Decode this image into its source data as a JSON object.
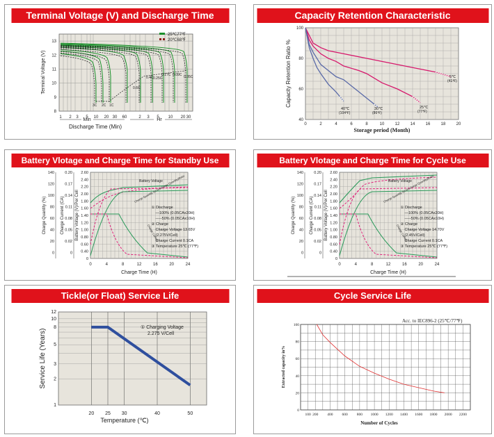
{
  "panels": [
    {
      "id": "p1",
      "title": "Terminal Voltage (V) and Discharge Time",
      "chart_data": {
        "type": "line",
        "ylabel": "Terminal Voltage (V)",
        "xlabel": "Discharge Time (Min)",
        "y_ticks": [
          "13",
          "12",
          "11",
          "10",
          "9",
          "8"
        ],
        "x_ticks_min": [
          "1",
          "2",
          "3",
          "5",
          "10",
          "20",
          "30",
          "60"
        ],
        "x_ticks_hr": [
          "2",
          "3",
          "5",
          "10",
          "20",
          "30"
        ],
        "x_unit_min": "Min",
        "x_unit_hr": "Hr",
        "legend": [
          "25℃77℉",
          "20℃68℉"
        ],
        "curve_labels": [
          "3C",
          "2C",
          "1C",
          "0.6C",
          "0.4C",
          "0.25C",
          "0.17C",
          "0.09C",
          "0.05C"
        ]
      }
    },
    {
      "id": "p2",
      "title": "Capacity Retention Characteristic",
      "chart_data": {
        "type": "line",
        "ylabel": "Capacity Retention Ratio %",
        "xlabel": "Storage period (Month)",
        "xlim": [
          0,
          20
        ],
        "ylim": [
          40,
          100
        ],
        "x_ticks": [
          "0",
          "2",
          "4",
          "6",
          "8",
          "10",
          "12",
          "14",
          "16",
          "18",
          "20"
        ],
        "y_ticks": [
          "100",
          "80",
          "60",
          "40"
        ],
        "series": [
          {
            "label_c": "5℃",
            "label_f": "(41℉)",
            "x": [
              0,
              1,
              2,
              3,
              5,
              8,
              11,
              14,
              17,
              19
            ],
            "y": [
              100,
              90,
              87,
              85,
              83,
              80,
              77,
              74,
              71,
              68
            ]
          },
          {
            "label_c": "25℃",
            "label_f": "(77℉)",
            "x": [
              0,
              0.5,
              1,
              2,
              3,
              4,
              5,
              7,
              8,
              10,
              12,
              14,
              15
            ],
            "y": [
              100,
              92,
              88,
              83,
              80,
              78,
              75,
              72,
              70,
              64,
              60,
              55,
              51
            ]
          },
          {
            "label_c": "30℃",
            "label_f": "(86℉)",
            "x": [
              0,
              0.5,
              1,
              2,
              3,
              4,
              5,
              6,
              7,
              8,
              9,
              9.5
            ],
            "y": [
              100,
              89,
              84,
              76,
              72,
              68,
              66,
              62,
              58,
              54,
              50,
              48
            ]
          },
          {
            "label_c": "40℃",
            "label_f": "(104℉)",
            "x": [
              0,
              0.5,
              1,
              1.5,
              2,
              3,
              4,
              4.5,
              5
            ],
            "y": [
              100,
              87,
              80,
              74,
              70,
              63,
              58,
              55,
              52
            ]
          }
        ]
      }
    },
    {
      "id": "p3",
      "title": "Battery Vlotage and Charge Time for Standby Use",
      "chart_data": {
        "type": "line",
        "xlabel": "Charge Time (H)",
        "x_ticks": [
          "0",
          "4",
          "8",
          "12",
          "16",
          "20",
          "24"
        ],
        "y1_label": "Charge Quantity (%)",
        "y1_ticks": [
          "140",
          "120",
          "100",
          "80",
          "60",
          "40",
          "20",
          "0"
        ],
        "y2_label": "Charge Current (CA)",
        "y2_ticks": [
          "0.20",
          "0.17",
          "0.14",
          "0.11",
          "0.08",
          "0.05",
          "0.02",
          "0"
        ],
        "y3_label": "Battery Voltage (V)/Per Cell",
        "y3_ticks": [
          "2.60",
          "2.40",
          "2.20",
          "2.00",
          "1.80",
          "1.60",
          "1.40",
          "1.20",
          "1.00",
          "0.80",
          "0.60",
          "0.40",
          "0"
        ],
        "curve_battery": "Battery Voltage",
        "curve_quantity": "Charge Quantity (to-Discharge Quantity)Ratio",
        "curve_current": "Charge Current",
        "notes": [
          "① Discharge",
          "—100% (0.05CAx20H)",
          "-----50% (0.05CAx10H)",
          "② Charge",
          "Charge Voltage 13.65V",
          "(2.275V/Cell)",
          "Charge Current 0.1CA",
          "③ Temperature 25℃ (77℉)"
        ]
      }
    },
    {
      "id": "p4",
      "title": "Battery Vlotage and Charge Time for Cycle Use",
      "chart_data": {
        "type": "line",
        "xlabel": "Charge Time (H)",
        "x_ticks": [
          "0",
          "4",
          "8",
          "12",
          "16",
          "20",
          "24"
        ],
        "y1_label": "Charge Quantity (%)",
        "y1_ticks": [
          "140",
          "120",
          "100",
          "80",
          "60",
          "40",
          "20",
          "0"
        ],
        "y2_label": "Charge Current (CA)",
        "y2_ticks": [
          "0.20",
          "0.17",
          "0.14",
          "0.11",
          "0.08",
          "0.05",
          "0.02",
          "0"
        ],
        "y3_label": "Battery Voltage (V)/Per Cell",
        "y3_ticks": [
          "2.60",
          "2.40",
          "2.20",
          "2.00",
          "1.80",
          "1.60",
          "1.40",
          "1.20",
          "1.00",
          "0.80",
          "0.60",
          "0.40",
          "0"
        ],
        "curve_battery": "Battery Voltage",
        "curve_quantity": "Charge Quantity (to-Discharge Quantity)Ratio",
        "curve_current": "Charge Current",
        "notes": [
          "① Discharge",
          "—100% (0.05CAx20H)",
          "-----50% (0.05CAx10H)",
          "② Charge",
          "Charge Voltage 14.70V",
          "(2.45V/Cell)",
          "Charge Current 0.1CA",
          "③ Temperature 25℃ (77℉)"
        ]
      }
    },
    {
      "id": "p5",
      "title": "Tickle(or Float) Service Life",
      "chart_data": {
        "type": "line",
        "xlabel": "Temperature (℃)",
        "ylabel": "Service Life (Years)",
        "xlim": [
          10,
          55
        ],
        "ylim": [
          1,
          12
        ],
        "x_ticks": [
          "20",
          "25",
          "30",
          "40",
          "50"
        ],
        "y_ticks": [
          "12",
          "10",
          "8",
          "5",
          "3",
          "2",
          "1"
        ],
        "note": [
          "① Charging Voltage",
          "2.275 V/Cell"
        ],
        "series": [
          {
            "x": [
              20,
              25,
              50
            ],
            "y": [
              8,
              8,
              1.7
            ]
          }
        ]
      }
    },
    {
      "id": "p6",
      "title": "Cycle Service Life",
      "chart_data": {
        "type": "line",
        "title": "Acc. to IEC896-2 (25℃/77℉)",
        "xlabel": "Number of Cycles",
        "ylabel": "Extracted capacity in%",
        "xlim": [
          0,
          2300
        ],
        "ylim": [
          0,
          100
        ],
        "x_ticks": [
          "100",
          "200",
          "400",
          "600",
          "800",
          "1000",
          "1200",
          "1400",
          "1600",
          "1800",
          "2000",
          "2200"
        ],
        "y_ticks": [
          "100",
          "80",
          "60",
          "40",
          "20",
          "0"
        ],
        "series": [
          {
            "x": [
              220,
              300,
              400,
              500,
              600,
              800,
              1000,
              1200,
              1400,
              1600,
              1800,
              1950
            ],
            "y": [
              100,
              88,
              79,
              71,
              63,
              51,
              43,
              36,
              30,
              26,
              22,
              20
            ]
          }
        ]
      }
    }
  ]
}
